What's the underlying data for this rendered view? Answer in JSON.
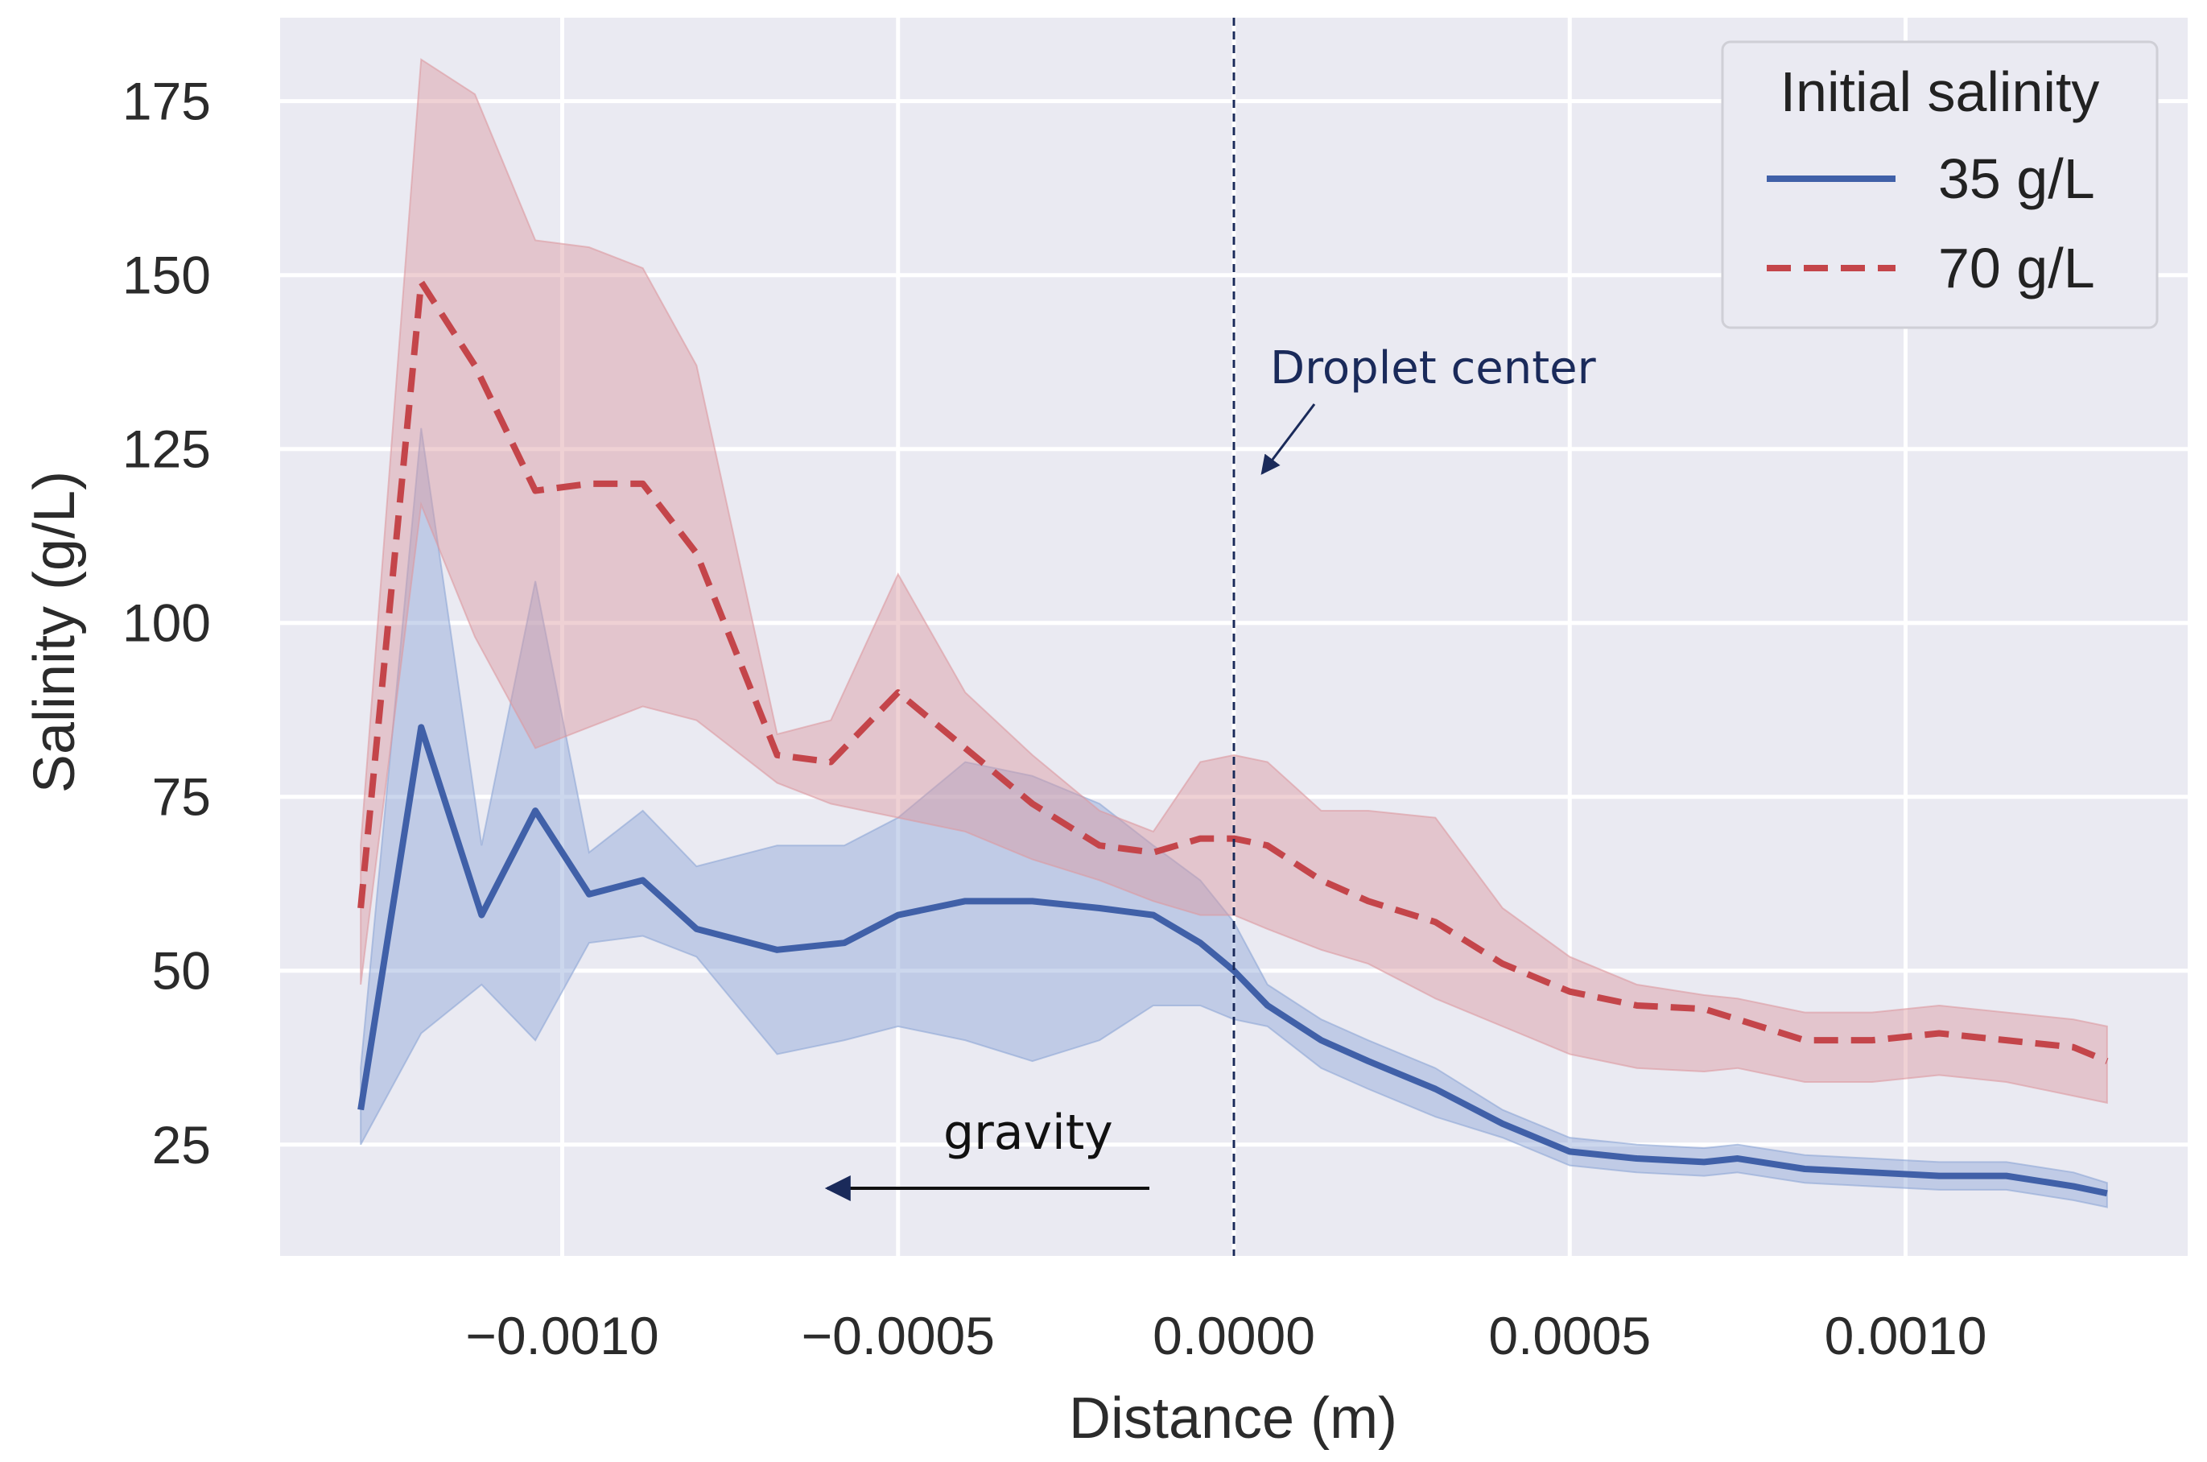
{
  "chart_data": {
    "type": "line",
    "title": "",
    "xlabel": "Distance (m)",
    "ylabel": "Salinity (g/L)",
    "xlim": [
      -0.00142,
      0.00142
    ],
    "ylim": [
      9,
      187
    ],
    "grid": true,
    "xticks": [
      -0.001,
      -0.0005,
      0.0,
      0.0005,
      0.001
    ],
    "xtick_labels": [
      "−0.0010",
      "−0.0005",
      "0.0000",
      "0.0005",
      "0.0010"
    ],
    "yticks": [
      25,
      50,
      75,
      100,
      125,
      150,
      175
    ],
    "ytick_labels": [
      "25",
      "50",
      "75",
      "100",
      "125",
      "150",
      "175"
    ],
    "legend": {
      "title": "Initial salinity",
      "position": "top-right",
      "entries": [
        "35 g/L",
        "70 g/L"
      ]
    },
    "annotations": {
      "center_label": "Droplet center",
      "gravity_label": "gravity",
      "center_line_x": 0.0
    },
    "series": [
      {
        "name": "35 g/L",
        "color": "#4060a8",
        "band_color": "#8ea6d6",
        "dash": "solid",
        "x": [
          -0.0013,
          -0.00121,
          -0.00112,
          -0.00104,
          -0.00096,
          -0.00088,
          -0.0008,
          -0.00068,
          -0.00058,
          -0.0005,
          -0.0004,
          -0.0003,
          -0.0002,
          -0.00012,
          -5e-05,
          0.0,
          5e-05,
          0.00013,
          0.0002,
          0.0003,
          0.0004,
          0.0005,
          0.0006,
          0.0007,
          0.00075,
          0.00085,
          0.00095,
          0.00105,
          0.00115,
          0.00125,
          0.0013
        ],
        "values": [
          30,
          85,
          58,
          73,
          61,
          63,
          56,
          53,
          54,
          58,
          60,
          60,
          59,
          58,
          54,
          50,
          45,
          40,
          37,
          33,
          28,
          24,
          23,
          22.5,
          23,
          21.5,
          21,
          20.5,
          20.5,
          19,
          18
        ],
        "upper": [
          36,
          128,
          68,
          106,
          67,
          73,
          65,
          68,
          68,
          72,
          80,
          78,
          74,
          68,
          63,
          57,
          48,
          43,
          40,
          36,
          30,
          26,
          25,
          24.5,
          25,
          23.5,
          23,
          22.5,
          22.5,
          21,
          19.5
        ],
        "lower": [
          25,
          41,
          48,
          40,
          54,
          55,
          52,
          38,
          40,
          42,
          40,
          37,
          40,
          45,
          45,
          43,
          42,
          36,
          33,
          29,
          26,
          22,
          21,
          20.5,
          21,
          19.5,
          19,
          18.5,
          18.5,
          17,
          16
        ]
      },
      {
        "name": "70 g/L",
        "color": "#c4454a",
        "band_color": "#dc9aa0",
        "dash": "dashed",
        "x": [
          -0.0013,
          -0.00121,
          -0.00113,
          -0.00104,
          -0.00096,
          -0.00088,
          -0.0008,
          -0.00068,
          -0.0006,
          -0.0005,
          -0.0004,
          -0.0003,
          -0.0002,
          -0.00012,
          -5e-05,
          0.0,
          5e-05,
          0.00013,
          0.0002,
          0.0003,
          0.0004,
          0.0005,
          0.0006,
          0.0007,
          0.00075,
          0.00085,
          0.00095,
          0.00105,
          0.00115,
          0.00125,
          0.0013
        ],
        "values": [
          59,
          149,
          137,
          119,
          120,
          120,
          110,
          81,
          80,
          90,
          82,
          74,
          68,
          67,
          69,
          69,
          68,
          63,
          60,
          57,
          51,
          47,
          45,
          44.5,
          43,
          40,
          40,
          41,
          40,
          39,
          37
        ],
        "upper": [
          68,
          181,
          176,
          155,
          154,
          151,
          137,
          84,
          86,
          107,
          90,
          81,
          73,
          70,
          80,
          81,
          80,
          73,
          73,
          72,
          59,
          52,
          48,
          46.5,
          46,
          44,
          44,
          45,
          44,
          43,
          42
        ],
        "lower": [
          48,
          117,
          98,
          82,
          85,
          88,
          86,
          77,
          74,
          72,
          70,
          66,
          63,
          60,
          58,
          58,
          56,
          53,
          51,
          46,
          42,
          38,
          36,
          35.5,
          36,
          34,
          34,
          35,
          34,
          32,
          31
        ]
      }
    ]
  }
}
